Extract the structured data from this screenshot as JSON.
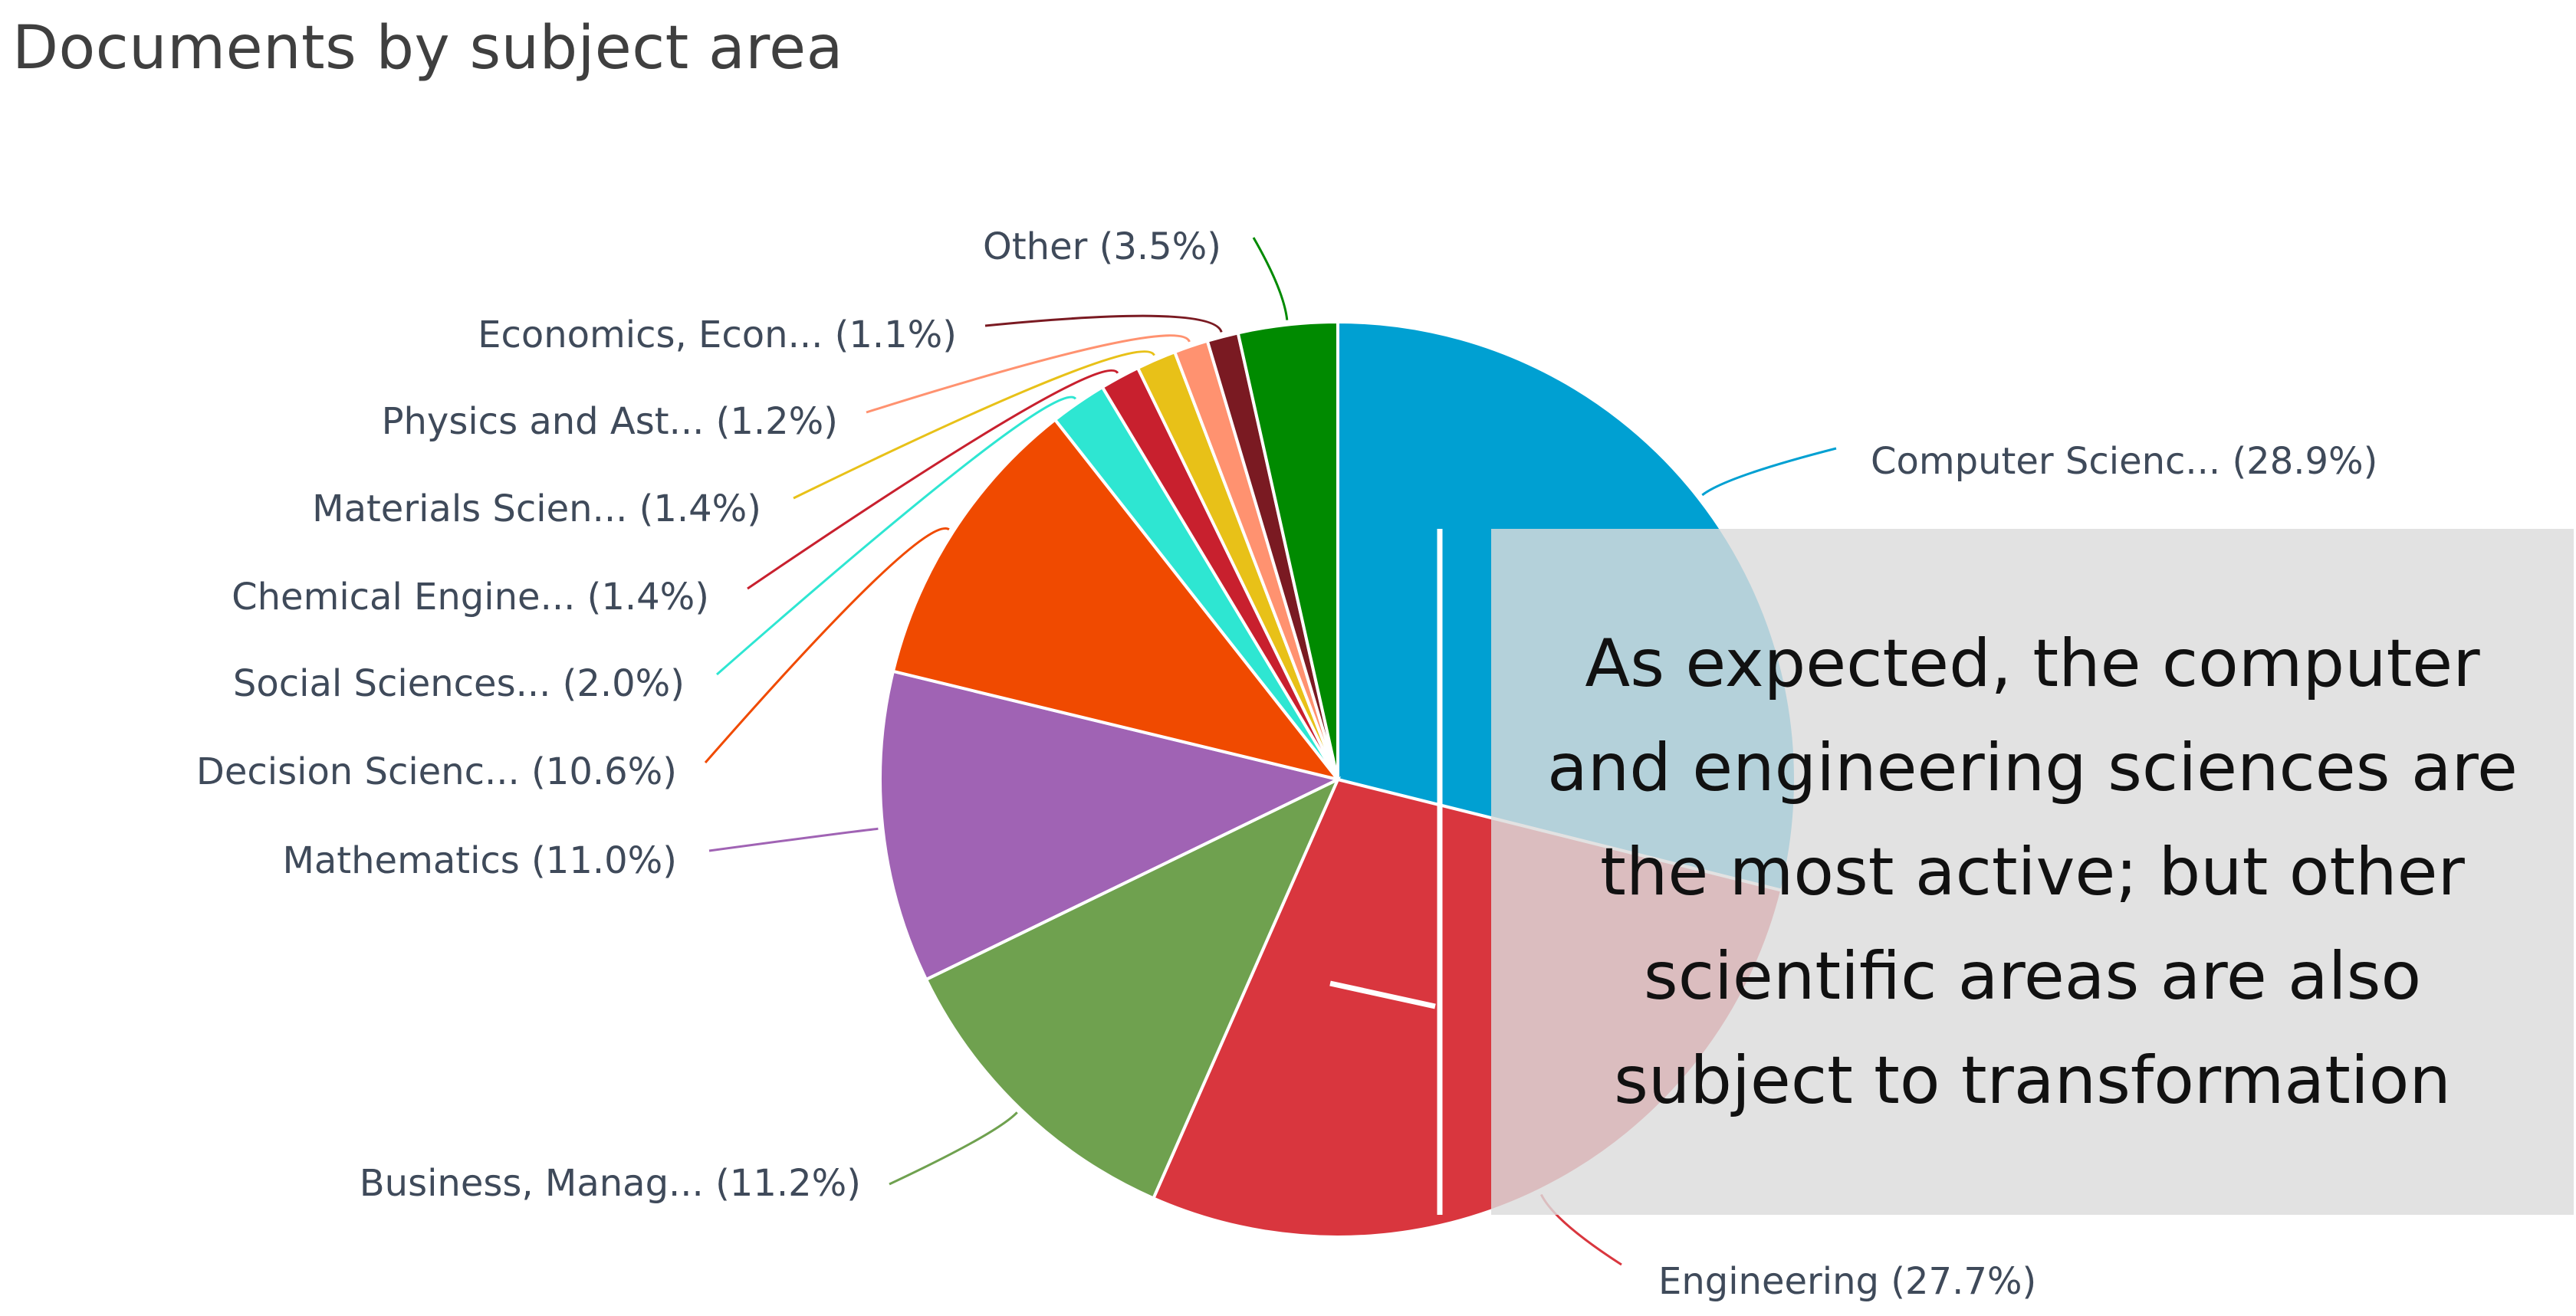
{
  "chart_data": {
    "type": "pie",
    "title": "Documents by subject area",
    "start_angle": "12 o'clock, clockwise",
    "slices": [
      {
        "label": "Computer Scienc... (28.9%)",
        "value": 28.9,
        "color": "#00a0d2"
      },
      {
        "label": "Engineering (27.7%)",
        "value": 27.7,
        "color": "#d9363e"
      },
      {
        "label": "Business, Manag... (11.2%)",
        "value": 11.2,
        "color": "#6fa14f"
      },
      {
        "label": "Mathematics (11.0%)",
        "value": 11.0,
        "color": "#a063b4"
      },
      {
        "label": "Decision Scienc... (10.6%)",
        "value": 10.6,
        "color": "#f04a00"
      },
      {
        "label": "Social Sciences... (2.0%)",
        "value": 2.0,
        "color": "#2ee6d2"
      },
      {
        "label": "Chemical Engine... (1.4%)",
        "value": 1.4,
        "color": "#c8202e"
      },
      {
        "label": "Materials Scien... (1.4%)",
        "value": 1.4,
        "color": "#e8c118"
      },
      {
        "label": "Physics and Ast... (1.2%)",
        "value": 1.2,
        "color": "#ff9270"
      },
      {
        "label": "Economics, Econ... (1.1%)",
        "value": 1.1,
        "color": "#7a1a22"
      },
      {
        "label": "Other (3.5%)",
        "value": 3.5,
        "color": "#008a00"
      }
    ]
  },
  "callout": {
    "text": "As expected, the computer and engineering sciences are the most active; but other scientific areas are also subject to transformation"
  }
}
